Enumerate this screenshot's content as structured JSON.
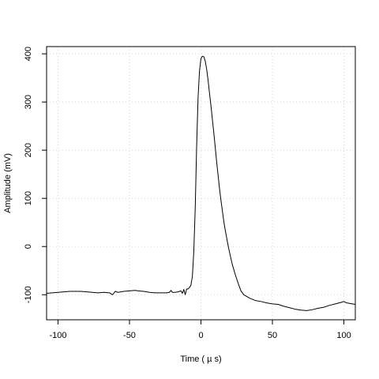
{
  "chart_data": {
    "type": "line",
    "title": "",
    "xlabel": "Time ( µ s)",
    "ylabel": "Amplitude (mV)",
    "xlim": [
      -108,
      108
    ],
    "ylim": [
      -152,
      415
    ],
    "xticks": [
      -100,
      -50,
      0,
      50,
      100
    ],
    "xtick_labels": [
      "-100",
      "-50",
      "0",
      "50",
      "100"
    ],
    "yticks": [
      -100,
      0,
      100,
      200,
      300,
      400
    ],
    "ytick_labels": [
      "-100",
      "0",
      "100",
      "200",
      "300",
      "400"
    ],
    "grid": true,
    "legend": "none",
    "series": [
      {
        "color": "#000000",
        "x": [
          -108,
          -104,
          -100,
          -96,
          -92,
          -88,
          -84,
          -80,
          -76,
          -72,
          -68,
          -64,
          -62,
          -61,
          -60,
          -58,
          -56,
          -54,
          -50,
          -46,
          -44,
          -40,
          -36,
          -32,
          -28,
          -24,
          -22,
          -21,
          -20,
          -18,
          -16,
          -14,
          -13,
          -12,
          -11,
          -10,
          -9,
          -8,
          -7,
          -6,
          -5,
          -4,
          -3,
          -2,
          -1,
          0,
          1,
          2,
          3,
          4,
          5,
          6,
          7,
          8,
          9,
          10,
          11,
          12,
          13,
          14,
          15,
          16,
          17,
          18,
          19,
          20,
          22,
          24,
          26,
          28,
          30,
          34,
          38,
          42,
          46,
          50,
          54,
          58,
          62,
          66,
          70,
          74,
          78,
          82,
          86,
          90,
          94,
          98,
          100,
          102,
          104,
          108
        ],
        "y": [
          -97,
          -96,
          -95,
          -94,
          -93,
          -93,
          -93,
          -94,
          -95,
          -96,
          -95,
          -96,
          -100,
          -97,
          -93,
          -95,
          -94,
          -93,
          -92,
          -91,
          -92,
          -93,
          -95,
          -96,
          -96,
          -96,
          -95,
          -91,
          -95,
          -95,
          -94,
          -92,
          -97,
          -89,
          -100,
          -88,
          -88,
          -85,
          -80,
          -62,
          -10,
          80,
          210,
          310,
          365,
          390,
          395,
          394,
          385,
          368,
          345,
          318,
          292,
          264,
          236,
          206,
          175,
          148,
          120,
          96,
          74,
          52,
          34,
          18,
          2,
          -12,
          -38,
          -58,
          -76,
          -92,
          -100,
          -107,
          -112,
          -114,
          -117,
          -119,
          -120,
          -124,
          -127,
          -130,
          -132,
          -133,
          -131,
          -128,
          -126,
          -122,
          -119,
          -116,
          -114,
          -117,
          -118,
          -120
        ]
      }
    ]
  }
}
